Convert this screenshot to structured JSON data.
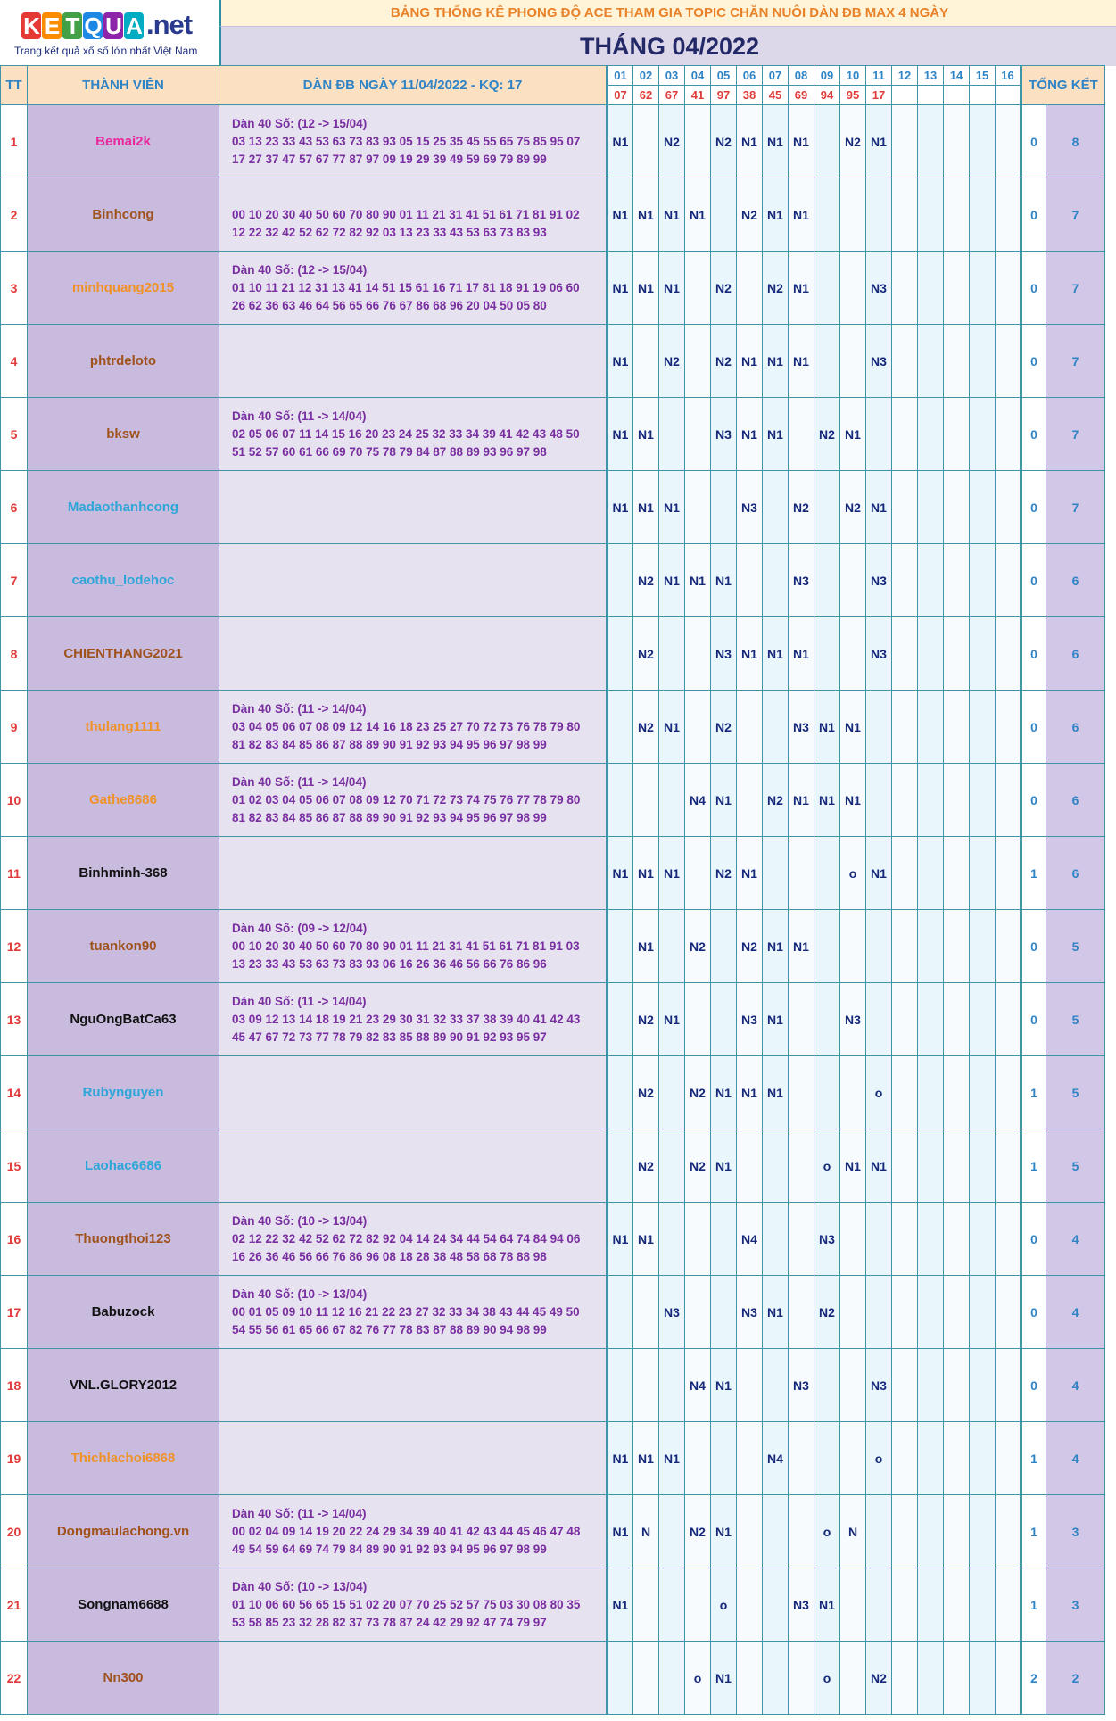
{
  "logo": {
    "brand": "KETQUA.net",
    "tagline": "Trang kết quả xổ số lớn nhất Việt Nam"
  },
  "header": {
    "title": "BẢNG THỐNG KÊ PHONG ĐỘ ACE THAM GIA TOPIC CHĂN NUÔI DÀN ĐB MAX 4 NGÀY",
    "month": "THÁNG 04/2022"
  },
  "columns": {
    "tt": "TT",
    "member": "THÀNH VIÊN",
    "dan": "DÀN ĐB NGÀY 11/04/2022 - KQ: 17",
    "summary": "TỔNG KẾT",
    "days": [
      "01",
      "02",
      "03",
      "04",
      "05",
      "06",
      "07",
      "08",
      "09",
      "10",
      "11",
      "12",
      "13",
      "14",
      "15",
      "16"
    ],
    "results": [
      "07",
      "62",
      "67",
      "41",
      "97",
      "38",
      "45",
      "69",
      "94",
      "95",
      "17",
      "",
      "",
      "",
      "",
      ""
    ]
  },
  "rows": [
    {
      "tt": "1",
      "name": "Bemai2k",
      "color": "#e8289c",
      "dan": [
        "Dàn 40 Số: (12 -> 15/04)",
        "03 13 23 33 43 53 63 73 83 93 05 15 25 35 45 55 65 75 85 95 07",
        "17 27 37 47 57 67 77 87 97 09 19 29 39 49 59 69 79 89 99"
      ],
      "days": [
        "N1",
        "",
        "N2",
        "",
        "N2",
        "N1",
        "N1",
        "N1",
        "",
        "N2",
        "N1",
        "",
        "",
        "",
        "",
        ""
      ],
      "s1": "0",
      "s2": "8"
    },
    {
      "tt": "2",
      "name": "Binhcong",
      "color": "#a0521d",
      "dan": [
        "",
        "00 10 20 30 40 50 60 70 80 90 01 11 21 31 41 51 61 71 81 91 02",
        "12 22 32 42 52 62 72 82 92 03 13 23 33 43 53 63 73 83 93"
      ],
      "days": [
        "N1",
        "N1",
        "N1",
        "N1",
        "",
        "N2",
        "N1",
        "N1",
        "",
        "",
        "",
        "",
        "",
        "",
        "",
        ""
      ],
      "s1": "0",
      "s2": "7"
    },
    {
      "tt": "3",
      "name": "minhquang2015",
      "color": "#f0922a",
      "dan": [
        "Dàn 40 Số: (12 -> 15/04)",
        "01 10 11 21 12 31 13 41 14 51 15 61 16 71 17 81 18 91 19 06 60",
        "26 62 36 63 46 64 56 65 66 76 67 86 68 96 20 04 50 05 80"
      ],
      "days": [
        "N1",
        "N1",
        "N1",
        "",
        "N2",
        "",
        "N2",
        "N1",
        "",
        "",
        "N3",
        "",
        "",
        "",
        "",
        ""
      ],
      "s1": "0",
      "s2": "7"
    },
    {
      "tt": "4",
      "name": "phtrdeloto",
      "color": "#a0521d",
      "dan": [],
      "days": [
        "N1",
        "",
        "N2",
        "",
        "N2",
        "N1",
        "N1",
        "N1",
        "",
        "",
        "N3",
        "",
        "",
        "",
        "",
        ""
      ],
      "s1": "0",
      "s2": "7"
    },
    {
      "tt": "5",
      "name": "bksw",
      "color": "#a0521d",
      "dan": [
        "Dàn 40 Số: (11 -> 14/04)",
        "02 05 06 07 11 14 15 16 20 23 24 25 32 33 34 39 41 42 43 48 50",
        "51 52 57 60 61 66 69 70 75 78 79 84 87 88 89 93 96 97 98"
      ],
      "days": [
        "N1",
        "N1",
        "",
        "",
        "N3",
        "N1",
        "N1",
        "",
        "N2",
        "N1",
        "",
        "",
        "",
        "",
        "",
        ""
      ],
      "s1": "0",
      "s2": "7"
    },
    {
      "tt": "6",
      "name": "Madaothanhcong",
      "color": "#2ea6d8",
      "dan": [],
      "days": [
        "N1",
        "N1",
        "N1",
        "",
        "",
        "N3",
        "",
        "N2",
        "",
        "N2",
        "N1",
        "",
        "",
        "",
        "",
        ""
      ],
      "s1": "0",
      "s2": "7"
    },
    {
      "tt": "7",
      "name": "caothu_lodehoc",
      "color": "#2ea6d8",
      "dan": [],
      "days": [
        "",
        "N2",
        "N1",
        "N1",
        "N1",
        "",
        "",
        "N3",
        "",
        "",
        "N3",
        "",
        "",
        "",
        "",
        ""
      ],
      "s1": "0",
      "s2": "6"
    },
    {
      "tt": "8",
      "name": "CHIENTHANG2021",
      "color": "#a0521d",
      "dan": [],
      "days": [
        "",
        "N2",
        "",
        "",
        "N3",
        "N1",
        "N1",
        "N1",
        "",
        "",
        "N3",
        "",
        "",
        "",
        "",
        ""
      ],
      "s1": "0",
      "s2": "6"
    },
    {
      "tt": "9",
      "name": "thulang1111",
      "color": "#f0922a",
      "dan": [
        "Dàn 40 Số: (11 -> 14/04)",
        "03 04 05 06 07 08 09 12 14 16 18 23 25 27 70 72 73 76 78 79 80",
        "81 82 83 84 85 86 87 88 89 90 91 92 93 94 95 96 97 98 99"
      ],
      "days": [
        "",
        "N2",
        "N1",
        "",
        "N2",
        "",
        "",
        "N3",
        "N1",
        "N1",
        "",
        "",
        "",
        "",
        "",
        ""
      ],
      "s1": "0",
      "s2": "6"
    },
    {
      "tt": "10",
      "name": "Gathe8686",
      "color": "#f0922a",
      "dan": [
        "Dàn 40 Số: (11 -> 14/04)",
        "01 02 03 04 05 06 07 08 09 12 70 71 72 73 74 75 76 77 78 79 80",
        "81 82 83 84 85 86 87 88 89 90 91 92 93 94 95 96 97 98 99"
      ],
      "days": [
        "",
        "",
        "",
        "N4",
        "N1",
        "",
        "N2",
        "N1",
        "N1",
        "N1",
        "",
        "",
        "",
        "",
        "",
        ""
      ],
      "s1": "0",
      "s2": "6"
    },
    {
      "tt": "11",
      "name": "Binhminh-368",
      "color": "#111111",
      "dan": [],
      "days": [
        "N1",
        "N1",
        "N1",
        "",
        "N2",
        "N1",
        "",
        "",
        "",
        "o",
        "N1",
        "",
        "",
        "",
        "",
        ""
      ],
      "s1": "1",
      "s2": "6"
    },
    {
      "tt": "12",
      "name": "tuankon90",
      "color": "#a0521d",
      "dan": [
        "Dàn 40 Số: (09 -> 12/04)",
        "00 10 20 30 40 50 60 70 80 90 01 11 21 31 41 51 61 71 81 91 03",
        "13 23 33 43 53 63 73 83 93 06 16 26 36 46 56 66 76 86 96"
      ],
      "days": [
        "",
        "N1",
        "",
        "N2",
        "",
        "N2",
        "N1",
        "N1",
        "",
        "",
        "",
        "",
        "",
        "",
        "",
        ""
      ],
      "s1": "0",
      "s2": "5"
    },
    {
      "tt": "13",
      "name": "NguOngBatCa63",
      "color": "#111111",
      "dan": [
        "Dàn 40 Số: (11 -> 14/04)",
        "03 09 12 13 14 18 19 21 23 29 30 31 32 33 37 38 39 40 41 42 43",
        "45 47 67 72 73 77 78 79 82 83 85 88 89 90 91 92 93 95 97"
      ],
      "days": [
        "",
        "N2",
        "N1",
        "",
        "",
        "N3",
        "N1",
        "",
        "",
        "N3",
        "",
        "",
        "",
        "",
        "",
        ""
      ],
      "s1": "0",
      "s2": "5"
    },
    {
      "tt": "14",
      "name": "Rubynguyen",
      "color": "#2ea6d8",
      "dan": [],
      "days": [
        "",
        "N2",
        "",
        "N2",
        "N1",
        "N1",
        "N1",
        "",
        "",
        "",
        "o",
        "",
        "",
        "",
        "",
        ""
      ],
      "s1": "1",
      "s2": "5"
    },
    {
      "tt": "15",
      "name": "Laohac6686",
      "color": "#2ea6d8",
      "dan": [],
      "days": [
        "",
        "N2",
        "",
        "N2",
        "N1",
        "",
        "",
        "",
        "o",
        "N1",
        "N1",
        "",
        "",
        "",
        "",
        ""
      ],
      "s1": "1",
      "s2": "5"
    },
    {
      "tt": "16",
      "name": "Thuongthoi123",
      "color": "#a0521d",
      "dan": [
        "Dàn 40 Số: (10 -> 13/04)",
        "02 12 22 32 42 52 62 72 82 92 04 14 24 34 44 54 64 74 84 94 06",
        "16 26 36 46 56 66 76 86 96 08 18 28 38 48 58 68 78 88 98"
      ],
      "days": [
        "N1",
        "N1",
        "",
        "",
        "",
        "N4",
        "",
        "",
        "N3",
        "",
        "",
        "",
        "",
        "",
        "",
        ""
      ],
      "s1": "0",
      "s2": "4"
    },
    {
      "tt": "17",
      "name": "Babuzock",
      "color": "#111111",
      "dan": [
        "Dàn 40 Số: (10 -> 13/04)",
        "00 01 05 09 10 11 12 16 21 22 23 27 32 33 34 38 43 44 45 49 50",
        "54 55 56 61 65 66 67 82 76 77 78 83 87 88 89 90 94 98 99"
      ],
      "days": [
        "",
        "",
        "N3",
        "",
        "",
        "N3",
        "N1",
        "",
        "N2",
        "",
        "",
        "",
        "",
        "",
        "",
        ""
      ],
      "s1": "0",
      "s2": "4"
    },
    {
      "tt": "18",
      "name": "VNL.GLORY2012",
      "color": "#111111",
      "dan": [],
      "days": [
        "",
        "",
        "",
        "N4",
        "N1",
        "",
        "",
        "N3",
        "",
        "",
        "N3",
        "",
        "",
        "",
        "",
        ""
      ],
      "s1": "0",
      "s2": "4"
    },
    {
      "tt": "19",
      "name": "Thichlachoi6868",
      "color": "#f0922a",
      "dan": [],
      "days": [
        "N1",
        "N1",
        "N1",
        "",
        "",
        "",
        "N4",
        "",
        "",
        "",
        "o",
        "",
        "",
        "",
        "",
        ""
      ],
      "s1": "1",
      "s2": "4"
    },
    {
      "tt": "20",
      "name": "Dongmaulachong.vn",
      "color": "#a0521d",
      "dan": [
        "Dàn 40 Số: (11 -> 14/04)",
        "00 02 04 09 14 19 20 22 24 29 34 39 40 41 42 43 44 45 46 47 48",
        "49 54 59 64 69 74 79 84 89 90 91 92 93 94 95 96 97 98 99"
      ],
      "days": [
        "N1",
        "N",
        "",
        "N2",
        "N1",
        "",
        "",
        "",
        "o",
        "N",
        "",
        "",
        "",
        "",
        "",
        ""
      ],
      "s1": "1",
      "s2": "3"
    },
    {
      "tt": "21",
      "name": "Songnam6688",
      "color": "#111111",
      "dan": [
        "Dàn 40 Số: (10 -> 13/04)",
        "01 10 06 60 56 65 15 51 02 20 07 70 25 52 57 75 03 30 08 80 35",
        "53 58 85 23 32 28 82 37 73 78 87 24 42 29 92 47 74 79 97"
      ],
      "days": [
        "N1",
        "",
        "",
        "",
        "o",
        "",
        "",
        "N3",
        "N1",
        "",
        "",
        "",
        "",
        "",
        "",
        ""
      ],
      "s1": "1",
      "s2": "3"
    },
    {
      "tt": "22",
      "name": "Nn300",
      "color": "#a0521d",
      "dan": [],
      "days": [
        "",
        "",
        "",
        "o",
        "N1",
        "",
        "",
        "",
        "o",
        "",
        "N2",
        "",
        "",
        "",
        "",
        ""
      ],
      "s1": "2",
      "s2": "2"
    }
  ]
}
